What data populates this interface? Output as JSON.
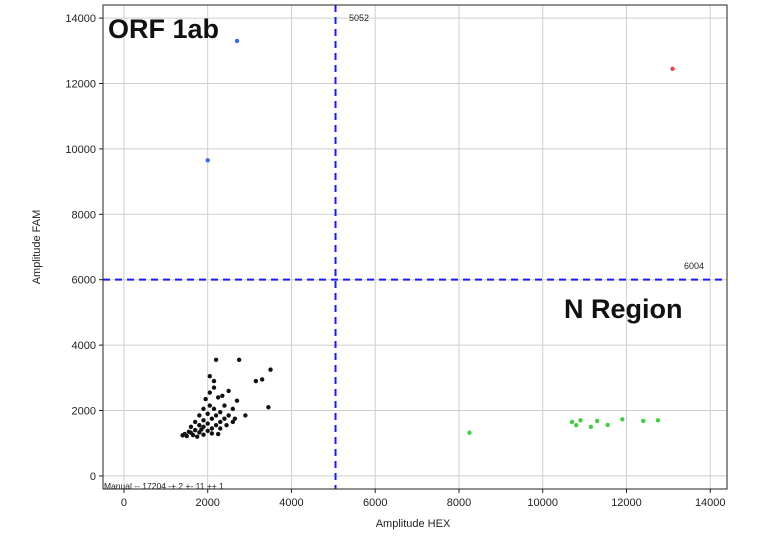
{
  "chart_data": {
    "type": "scatter",
    "title": "",
    "xlabel": "Amplitude HEX",
    "ylabel": "Amplitude FAM",
    "xlim": [
      -500,
      14400
    ],
    "ylim": [
      -400,
      14400
    ],
    "x_ticks": [
      0,
      2000,
      4000,
      6000,
      8000,
      10000,
      12000,
      14000
    ],
    "y_ticks": [
      0,
      2000,
      4000,
      6000,
      8000,
      10000,
      12000,
      14000
    ],
    "grid": true,
    "thresholds": [
      {
        "axis": "x",
        "value": 5052,
        "label": "5052",
        "color": "#1a1aff"
      },
      {
        "axis": "y",
        "value": 6004,
        "label": "6004",
        "color": "#1a1aff"
      }
    ],
    "annotations": [
      "ORF 1ab",
      "N Region"
    ],
    "footer_text": "Manual -- 17204 -+ 2 +- 11 ++ 1",
    "series": [
      {
        "color": "#4466ee",
        "points": [
          [
            2700,
            13300
          ],
          [
            2000,
            9650
          ]
        ]
      },
      {
        "color": "#ee4444",
        "points": [
          [
            13100,
            12450
          ]
        ]
      },
      {
        "color": "#44cc44",
        "points": [
          [
            8250,
            1320
          ],
          [
            10700,
            1650
          ],
          [
            10800,
            1550
          ],
          [
            10900,
            1700
          ],
          [
            11150,
            1500
          ],
          [
            11300,
            1680
          ],
          [
            11550,
            1560
          ],
          [
            11900,
            1730
          ],
          [
            12400,
            1680
          ],
          [
            12750,
            1700
          ]
        ]
      },
      {
        "color": "#111111",
        "points": [
          [
            2200,
            3550
          ],
          [
            2750,
            3550
          ],
          [
            3500,
            3250
          ],
          [
            3150,
            2900
          ],
          [
            3300,
            2950
          ],
          [
            2050,
            3050
          ],
          [
            2150,
            2900
          ],
          [
            2500,
            2600
          ],
          [
            2350,
            2450
          ],
          [
            2700,
            2300
          ],
          [
            3450,
            2100
          ],
          [
            2600,
            2050
          ],
          [
            2900,
            1850
          ],
          [
            2150,
            2700
          ],
          [
            2050,
            2550
          ],
          [
            2250,
            2400
          ],
          [
            1950,
            2350
          ],
          [
            2400,
            2150
          ],
          [
            2050,
            2150
          ],
          [
            2150,
            2050
          ],
          [
            2300,
            1950
          ],
          [
            1900,
            2050
          ],
          [
            2500,
            1850
          ],
          [
            2650,
            1750
          ],
          [
            2000,
            1900
          ],
          [
            1800,
            1850
          ],
          [
            2200,
            1850
          ],
          [
            2400,
            1750
          ],
          [
            2600,
            1650
          ],
          [
            2100,
            1750
          ],
          [
            1900,
            1700
          ],
          [
            2300,
            1650
          ],
          [
            1700,
            1650
          ],
          [
            2000,
            1600
          ],
          [
            2200,
            1550
          ],
          [
            1800,
            1550
          ],
          [
            1600,
            1500
          ],
          [
            1900,
            1500
          ],
          [
            2100,
            1450
          ],
          [
            2300,
            1450
          ],
          [
            1700,
            1400
          ],
          [
            2000,
            1380
          ],
          [
            1550,
            1350
          ],
          [
            1800,
            1330
          ],
          [
            1450,
            1280
          ],
          [
            1650,
            1250
          ],
          [
            1900,
            1260
          ],
          [
            1500,
            1220
          ],
          [
            1750,
            1200
          ],
          [
            1400,
            1240
          ],
          [
            2450,
            1550
          ],
          [
            2100,
            1300
          ],
          [
            1600,
            1320
          ],
          [
            1850,
            1420
          ],
          [
            2250,
            1280
          ]
        ]
      }
    ]
  }
}
